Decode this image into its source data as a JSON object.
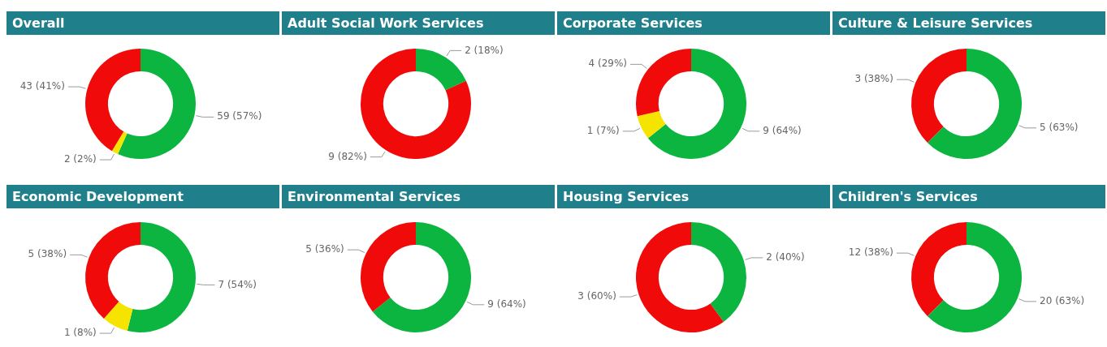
{
  "chart_data": [
    {
      "type": "donut",
      "title": "Overall",
      "categories": [
        null,
        null,
        null
      ],
      "values": [
        59,
        2,
        43
      ],
      "colors": [
        "#0bb540",
        "#f5e400",
        "#f00a0a"
      ],
      "value_labels": [
        "59 (57%)",
        "2 (2%)",
        "43 (41%)"
      ]
    },
    {
      "type": "donut",
      "title": "Adult Social Work Services",
      "categories": [
        null,
        null
      ],
      "values": [
        2,
        9
      ],
      "colors": [
        "#0bb540",
        "#f00a0a"
      ],
      "value_labels": [
        "2 (18%)",
        "9 (82%)"
      ]
    },
    {
      "type": "donut",
      "title": "Corporate Services",
      "categories": [
        null,
        null,
        null
      ],
      "values": [
        9,
        1,
        4
      ],
      "colors": [
        "#0bb540",
        "#f5e400",
        "#f00a0a"
      ],
      "value_labels": [
        "9 (64%)",
        "1 (7%)",
        "4 (29%)"
      ]
    },
    {
      "type": "donut",
      "title": "Culture & Leisure Services",
      "categories": [
        null,
        null
      ],
      "values": [
        5,
        3
      ],
      "colors": [
        "#0bb540",
        "#f00a0a"
      ],
      "value_labels": [
        "5 (63%)",
        "3 (38%)"
      ]
    },
    {
      "type": "donut",
      "title": "Economic Development",
      "categories": [
        null,
        null,
        null
      ],
      "values": [
        7,
        1,
        5
      ],
      "colors": [
        "#0bb540",
        "#f5e400",
        "#f00a0a"
      ],
      "value_labels": [
        "7 (54%)",
        "1 (8%)",
        "5 (38%)"
      ]
    },
    {
      "type": "donut",
      "title": "Environmental Services",
      "categories": [
        null,
        null
      ],
      "values": [
        9,
        5
      ],
      "colors": [
        "#0bb540",
        "#f00a0a"
      ],
      "value_labels": [
        "9 (64%)",
        "5 (36%)"
      ]
    },
    {
      "type": "donut",
      "title": "Housing Services",
      "categories": [
        null,
        null
      ],
      "values": [
        2,
        3
      ],
      "colors": [
        "#0bb540",
        "#f00a0a"
      ],
      "value_labels": [
        "2 (40%)",
        "3 (60%)"
      ]
    },
    {
      "type": "donut",
      "title": "Children's Services",
      "categories": [
        null,
        null
      ],
      "values": [
        20,
        12
      ],
      "colors": [
        "#0bb540",
        "#f00a0a"
      ],
      "value_labels": [
        "20 (63%)",
        "12 (38%)"
      ]
    }
  ]
}
